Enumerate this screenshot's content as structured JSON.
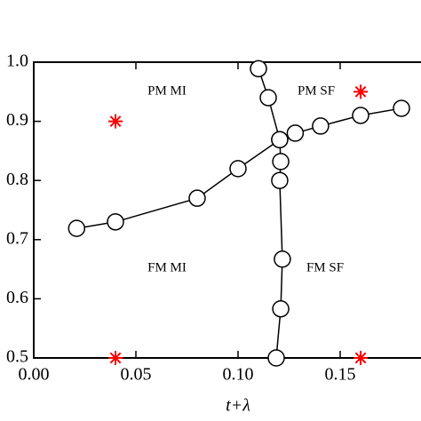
{
  "chart_data": {
    "type": "line",
    "x_label": "t+λ",
    "xlim": [
      0,
      0.19
    ],
    "ylim": [
      0.5,
      1.0
    ],
    "xticks": [
      {
        "value": 0,
        "label": "0.00"
      },
      {
        "value": 0.05,
        "label": "0.05"
      },
      {
        "value": 0.1,
        "label": "0.10"
      },
      {
        "value": 0.15,
        "label": "0.15"
      }
    ],
    "yticks": [
      {
        "value": 0.5,
        "label": "0.5"
      },
      {
        "value": 0.6,
        "label": "0.6"
      },
      {
        "value": 0.7,
        "label": "0.7"
      },
      {
        "value": 0.8,
        "label": "0.8"
      },
      {
        "value": 0.9,
        "label": "0.9"
      },
      {
        "value": 1.0,
        "label": "1.0"
      }
    ],
    "series": [
      {
        "color": "#000000",
        "marker": "circle",
        "line": true,
        "x": [
          0.021,
          0.04,
          0.08,
          0.1,
          0.1204,
          0.128,
          0.1404,
          0.16,
          0.18
        ],
        "values": [
          0.719,
          0.73,
          0.77,
          0.82,
          0.869,
          0.88,
          0.892,
          0.91,
          0.922
        ]
      },
      {
        "color": "#000000",
        "marker": "circle",
        "line": true,
        "x": [
          0.11,
          0.1148,
          0.1204,
          0.1209,
          0.1204,
          0.1217,
          0.1209,
          0.1187
        ],
        "values": [
          0.989,
          0.94,
          0.869,
          0.832,
          0.8,
          0.667,
          0.583,
          0.5
        ]
      },
      {
        "color": "#ff0000",
        "marker": "asterisk",
        "line": false,
        "x": [
          0.04,
          0.16,
          0.04,
          0.16
        ],
        "values": [
          0.9,
          0.95,
          0.5,
          0.5
        ]
      }
    ],
    "annotations": [
      "PM MI",
      "PM SF",
      "FM MI",
      "FM SF"
    ]
  }
}
